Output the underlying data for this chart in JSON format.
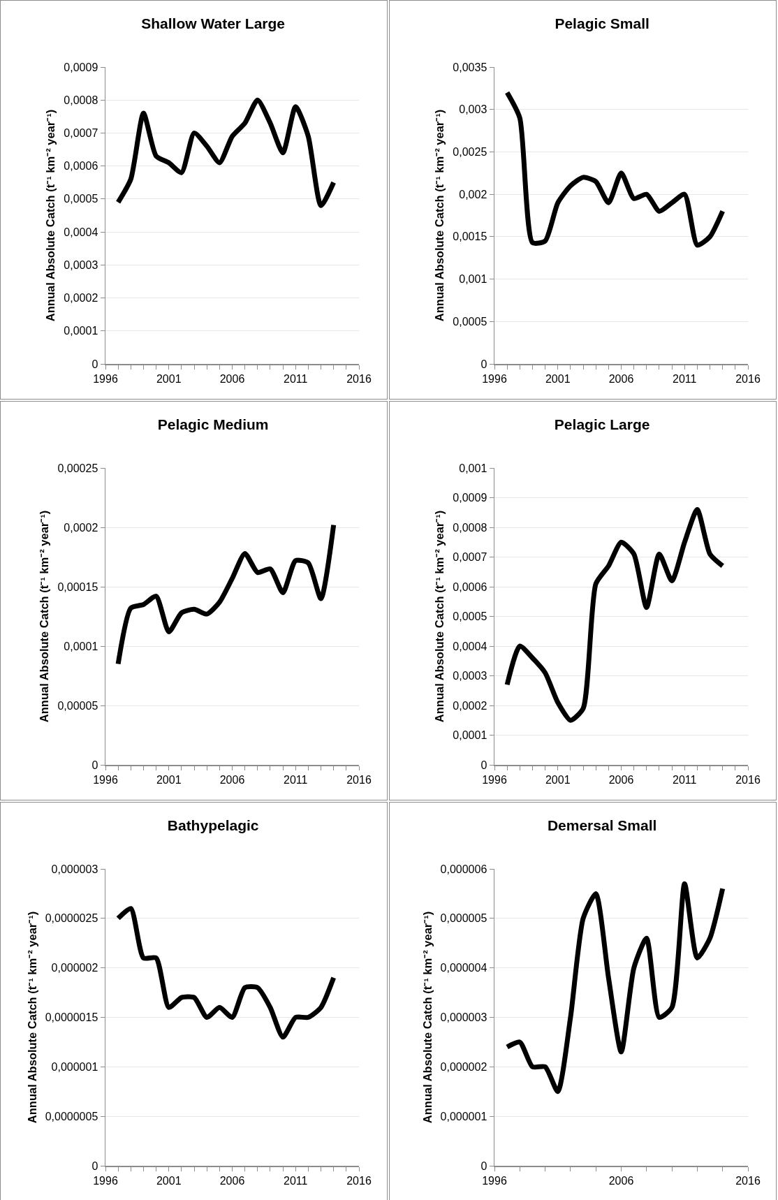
{
  "chart_data": [
    {
      "type": "line",
      "title": "Shallow Water Large",
      "ylabel": "Annual Absolute Catch (t⁻¹ km⁻² year⁻¹)",
      "x": [
        1997,
        1998,
        1999,
        2000,
        2001,
        2002,
        2003,
        2004,
        2005,
        2006,
        2007,
        2008,
        2009,
        2010,
        2011,
        2012,
        2013,
        2014
      ],
      "series": [
        {
          "color": "#000000",
          "values": [
            0.00049,
            0.00056,
            0.00076,
            0.00063,
            0.00061,
            0.00058,
            0.0007,
            0.00066,
            0.00061,
            0.00069,
            0.00073,
            0.0008,
            0.00073,
            0.00064,
            0.00078,
            0.00069,
            0.00048,
            0.00055
          ]
        }
      ],
      "xlim": [
        1996,
        2016
      ],
      "xticks": [
        1996,
        {
          "value": 1997,
          "label": null
        },
        {
          "value": 1998,
          "label": null
        },
        {
          "value": 1999,
          "label": null
        },
        {
          "value": 2000,
          "label": null
        },
        2001,
        {
          "value": 2002,
          "label": null
        },
        {
          "value": 2003,
          "label": null
        },
        {
          "value": 2004,
          "label": null
        },
        {
          "value": 2005,
          "label": null
        },
        2006,
        {
          "value": 2007,
          "label": null
        },
        {
          "value": 2008,
          "label": null
        },
        {
          "value": 2009,
          "label": null
        },
        {
          "value": 2010,
          "label": null
        },
        2011,
        {
          "value": 2012,
          "label": null
        },
        {
          "value": 2013,
          "label": null
        },
        {
          "value": 2014,
          "label": null
        },
        {
          "value": 2015,
          "label": null
        },
        2016
      ],
      "ylim": [
        0,
        0.0009
      ],
      "yticks": [
        {
          "value": 0,
          "label": "0"
        },
        {
          "value": 0.0001,
          "label": "0,0001"
        },
        {
          "value": 0.0002,
          "label": "0,0002"
        },
        {
          "value": 0.0003,
          "label": "0,0003"
        },
        {
          "value": 0.0004,
          "label": "0,0004"
        },
        {
          "value": 0.0005,
          "label": "0,0005"
        },
        {
          "value": 0.0006,
          "label": "0,0006"
        },
        {
          "value": 0.0007,
          "label": "0,0007"
        },
        {
          "value": 0.0008,
          "label": "0,0008"
        },
        {
          "value": 0.0009,
          "label": "0,0009"
        }
      ],
      "grid": "y"
    },
    {
      "type": "line",
      "title": "Pelagic Small",
      "ylabel": "Annual Absolute Catch (t⁻¹ km⁻² year⁻¹)",
      "x": [
        1997,
        1998,
        1999,
        2000,
        2001,
        2002,
        2003,
        2004,
        2005,
        2006,
        2007,
        2008,
        2009,
        2010,
        2011,
        2012,
        2013,
        2014
      ],
      "series": [
        {
          "color": "#000000",
          "values": [
            0.0032,
            0.0029,
            0.00143,
            0.00145,
            0.0019,
            0.0021,
            0.0022,
            0.00215,
            0.0019,
            0.00225,
            0.00195,
            0.002,
            0.0018,
            0.0019,
            0.002,
            0.0014,
            0.0015,
            0.0018
          ]
        }
      ],
      "xlim": [
        1996,
        2016
      ],
      "xticks": [
        1996,
        {
          "value": 1997,
          "label": null
        },
        {
          "value": 1998,
          "label": null
        },
        {
          "value": 1999,
          "label": null
        },
        {
          "value": 2000,
          "label": null
        },
        2001,
        {
          "value": 2002,
          "label": null
        },
        {
          "value": 2003,
          "label": null
        },
        {
          "value": 2004,
          "label": null
        },
        {
          "value": 2005,
          "label": null
        },
        2006,
        {
          "value": 2007,
          "label": null
        },
        {
          "value": 2008,
          "label": null
        },
        {
          "value": 2009,
          "label": null
        },
        {
          "value": 2010,
          "label": null
        },
        2011,
        {
          "value": 2012,
          "label": null
        },
        {
          "value": 2013,
          "label": null
        },
        {
          "value": 2014,
          "label": null
        },
        {
          "value": 2015,
          "label": null
        },
        2016
      ],
      "ylim": [
        0,
        0.0035
      ],
      "yticks": [
        {
          "value": 0,
          "label": "0"
        },
        {
          "value": 0.0005,
          "label": "0,0005"
        },
        {
          "value": 0.001,
          "label": "0,001"
        },
        {
          "value": 0.0015,
          "label": "0,0015"
        },
        {
          "value": 0.002,
          "label": "0,002"
        },
        {
          "value": 0.0025,
          "label": "0,0025"
        },
        {
          "value": 0.003,
          "label": "0,003"
        },
        {
          "value": 0.0035,
          "label": "0,0035"
        }
      ],
      "grid": "y"
    },
    {
      "type": "line",
      "title": "Pelagic Medium",
      "ylabel": "Annual Absolute Catch (t⁻¹ km⁻² year⁻¹)",
      "x": [
        1997,
        1998,
        1999,
        2000,
        2001,
        2002,
        2003,
        2004,
        2005,
        2006,
        2007,
        2008,
        2009,
        2010,
        2011,
        2012,
        2013,
        2014
      ],
      "series": [
        {
          "color": "#000000",
          "values": [
            8.5e-05,
            0.000132,
            0.000135,
            0.000142,
            0.000112,
            0.000128,
            0.000131,
            0.000127,
            0.000137,
            0.000157,
            0.000178,
            0.000162,
            0.000165,
            0.000145,
            0.000172,
            0.00017,
            0.00014,
            0.000202
          ]
        }
      ],
      "xlim": [
        1996,
        2016
      ],
      "xticks": [
        1996,
        {
          "value": 1997,
          "label": null
        },
        {
          "value": 1998,
          "label": null
        },
        {
          "value": 1999,
          "label": null
        },
        {
          "value": 2000,
          "label": null
        },
        2001,
        {
          "value": 2002,
          "label": null
        },
        {
          "value": 2003,
          "label": null
        },
        {
          "value": 2004,
          "label": null
        },
        {
          "value": 2005,
          "label": null
        },
        2006,
        {
          "value": 2007,
          "label": null
        },
        {
          "value": 2008,
          "label": null
        },
        {
          "value": 2009,
          "label": null
        },
        {
          "value": 2010,
          "label": null
        },
        2011,
        {
          "value": 2012,
          "label": null
        },
        {
          "value": 2013,
          "label": null
        },
        {
          "value": 2014,
          "label": null
        },
        {
          "value": 2015,
          "label": null
        },
        2016
      ],
      "ylim": [
        0,
        0.00025
      ],
      "yticks": [
        {
          "value": 0,
          "label": "0"
        },
        {
          "value": 5e-05,
          "label": "0,00005"
        },
        {
          "value": 0.0001,
          "label": "0,0001"
        },
        {
          "value": 0.00015,
          "label": "0,00015"
        },
        {
          "value": 0.0002,
          "label": "0,0002"
        },
        {
          "value": 0.00025,
          "label": "0,00025"
        }
      ],
      "grid": "y"
    },
    {
      "type": "line",
      "title": "Pelagic Large",
      "ylabel": "Annual Absolute Catch (t⁻¹ km⁻² year⁻¹)",
      "x": [
        1997,
        1998,
        1999,
        2000,
        2001,
        2002,
        2003,
        2004,
        2005,
        2006,
        2007,
        2008,
        2009,
        2010,
        2011,
        2012,
        2013,
        2014
      ],
      "series": [
        {
          "color": "#000000",
          "values": [
            0.00027,
            0.0004,
            0.00036,
            0.00031,
            0.00021,
            0.00015,
            0.00019,
            0.00061,
            0.00067,
            0.00075,
            0.00071,
            0.00053,
            0.00071,
            0.00062,
            0.00075,
            0.00086,
            0.00071,
            0.00067
          ]
        }
      ],
      "xlim": [
        1996,
        2016
      ],
      "xticks": [
        1996,
        {
          "value": 1997,
          "label": null
        },
        {
          "value": 1998,
          "label": null
        },
        {
          "value": 1999,
          "label": null
        },
        {
          "value": 2000,
          "label": null
        },
        2001,
        {
          "value": 2002,
          "label": null
        },
        {
          "value": 2003,
          "label": null
        },
        {
          "value": 2004,
          "label": null
        },
        {
          "value": 2005,
          "label": null
        },
        2006,
        {
          "value": 2007,
          "label": null
        },
        {
          "value": 2008,
          "label": null
        },
        {
          "value": 2009,
          "label": null
        },
        {
          "value": 2010,
          "label": null
        },
        2011,
        {
          "value": 2012,
          "label": null
        },
        {
          "value": 2013,
          "label": null
        },
        {
          "value": 2014,
          "label": null
        },
        {
          "value": 2015,
          "label": null
        },
        2016
      ],
      "ylim": [
        0,
        0.001
      ],
      "yticks": [
        {
          "value": 0,
          "label": "0"
        },
        {
          "value": 0.0001,
          "label": "0,0001"
        },
        {
          "value": 0.0002,
          "label": "0,0002"
        },
        {
          "value": 0.0003,
          "label": "0,0003"
        },
        {
          "value": 0.0004,
          "label": "0,0004"
        },
        {
          "value": 0.0005,
          "label": "0,0005"
        },
        {
          "value": 0.0006,
          "label": "0,0006"
        },
        {
          "value": 0.0007,
          "label": "0,0007"
        },
        {
          "value": 0.0008,
          "label": "0,0008"
        },
        {
          "value": 0.0009,
          "label": "0,0009"
        },
        {
          "value": 0.001,
          "label": "0,001"
        }
      ],
      "grid": "y"
    },
    {
      "type": "line",
      "title": "Bathypelagic",
      "ylabel": "Annual Absolute Catch (t⁻¹ km⁻² year⁻¹)",
      "x": [
        1997,
        1998,
        1999,
        2000,
        2001,
        2002,
        2003,
        2004,
        2005,
        2006,
        2007,
        2008,
        2009,
        2010,
        2011,
        2012,
        2013,
        2014
      ],
      "series": [
        {
          "color": "#000000",
          "values": [
            2.5e-06,
            2.6e-06,
            2.1e-06,
            2.1e-06,
            1.6e-06,
            1.7e-06,
            1.7e-06,
            1.5e-06,
            1.6e-06,
            1.5e-06,
            1.8e-06,
            1.8e-06,
            1.6e-06,
            1.3e-06,
            1.5e-06,
            1.5e-06,
            1.6e-06,
            1.9e-06
          ]
        }
      ],
      "xlim": [
        1996,
        2016
      ],
      "xticks": [
        1996,
        {
          "value": 1997,
          "label": null
        },
        {
          "value": 1998,
          "label": null
        },
        {
          "value": 1999,
          "label": null
        },
        {
          "value": 2000,
          "label": null
        },
        2001,
        {
          "value": 2002,
          "label": null
        },
        {
          "value": 2003,
          "label": null
        },
        {
          "value": 2004,
          "label": null
        },
        {
          "value": 2005,
          "label": null
        },
        2006,
        {
          "value": 2007,
          "label": null
        },
        {
          "value": 2008,
          "label": null
        },
        {
          "value": 2009,
          "label": null
        },
        {
          "value": 2010,
          "label": null
        },
        2011,
        {
          "value": 2012,
          "label": null
        },
        {
          "value": 2013,
          "label": null
        },
        {
          "value": 2014,
          "label": null
        },
        {
          "value": 2015,
          "label": null
        },
        2016
      ],
      "ylim": [
        0,
        3e-06
      ],
      "yticks": [
        {
          "value": 0,
          "label": "0"
        },
        {
          "value": 5e-07,
          "label": "0,0000005"
        },
        {
          "value": 1e-06,
          "label": "0,000001"
        },
        {
          "value": 1.5e-06,
          "label": "0,0000015"
        },
        {
          "value": 2e-06,
          "label": "0,000002"
        },
        {
          "value": 2.5e-06,
          "label": "0,0000025"
        },
        {
          "value": 3e-06,
          "label": "0,000003"
        }
      ],
      "grid": "y"
    },
    {
      "type": "line",
      "title": "Demersal Small",
      "ylabel": "Annual Absolute Catch (t⁻¹ km⁻² year⁻¹)",
      "x": [
        1997,
        1998,
        1999,
        2000,
        2001,
        2002,
        2003,
        2004,
        2005,
        2006,
        2007,
        2008,
        2009,
        2010,
        2011,
        2012,
        2013,
        2014
      ],
      "series": [
        {
          "color": "#000000",
          "values": [
            2.4e-06,
            2.5e-06,
            2e-06,
            2e-06,
            1.5e-06,
            3e-06,
            5e-06,
            5.5e-06,
            3.8e-06,
            2.3e-06,
            4e-06,
            4.6e-06,
            3e-06,
            3.2e-06,
            5.7e-06,
            4.2e-06,
            4.6e-06,
            5.6e-06
          ]
        }
      ],
      "xlim": [
        1996,
        2016
      ],
      "xticks": [
        1996,
        {
          "value": 1998,
          "label": null
        },
        {
          "value": 2000,
          "label": null
        },
        {
          "value": 2002,
          "label": null
        },
        {
          "value": 2004,
          "label": null
        },
        2006,
        {
          "value": 2008,
          "label": null
        },
        {
          "value": 2010,
          "label": null
        },
        {
          "value": 2012,
          "label": null
        },
        {
          "value": 2014,
          "label": null
        },
        2016
      ],
      "ylim": [
        0,
        6e-06
      ],
      "yticks": [
        {
          "value": 0,
          "label": "0"
        },
        {
          "value": 1e-06,
          "label": "0,000001"
        },
        {
          "value": 2e-06,
          "label": "0,000002"
        },
        {
          "value": 3e-06,
          "label": "0,000003"
        },
        {
          "value": 4e-06,
          "label": "0,000004"
        },
        {
          "value": 5e-06,
          "label": "0,000005"
        },
        {
          "value": 6e-06,
          "label": "0,000006"
        }
      ],
      "grid": "y"
    }
  ]
}
